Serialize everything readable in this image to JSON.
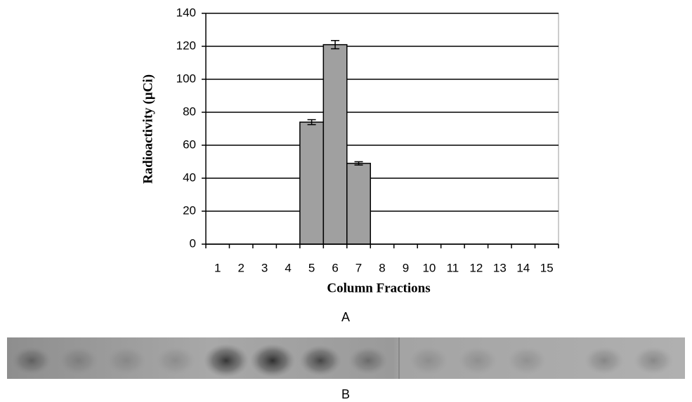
{
  "chart_data": {
    "type": "bar",
    "x_label": "Column Fractions",
    "y_label": "Radioactivity (µCi)",
    "categories": [
      "1",
      "2",
      "3",
      "4",
      "5",
      "6",
      "7",
      "8",
      "9",
      "10",
      "11",
      "12",
      "13",
      "14",
      "15"
    ],
    "values": [
      0,
      0,
      0,
      0,
      74,
      121,
      49,
      0,
      0,
      0,
      0,
      0,
      0,
      0,
      0
    ],
    "errors": [
      null,
      null,
      null,
      null,
      1.5,
      2.5,
      1,
      null,
      null,
      null,
      null,
      null,
      null,
      null,
      null
    ],
    "color": "#a0a0a0",
    "ylim": [
      0,
      140
    ],
    "yticks": [
      0,
      20,
      40,
      60,
      80,
      100,
      120,
      140
    ],
    "grid": true
  },
  "panel_labels": [
    "A",
    "B"
  ]
}
